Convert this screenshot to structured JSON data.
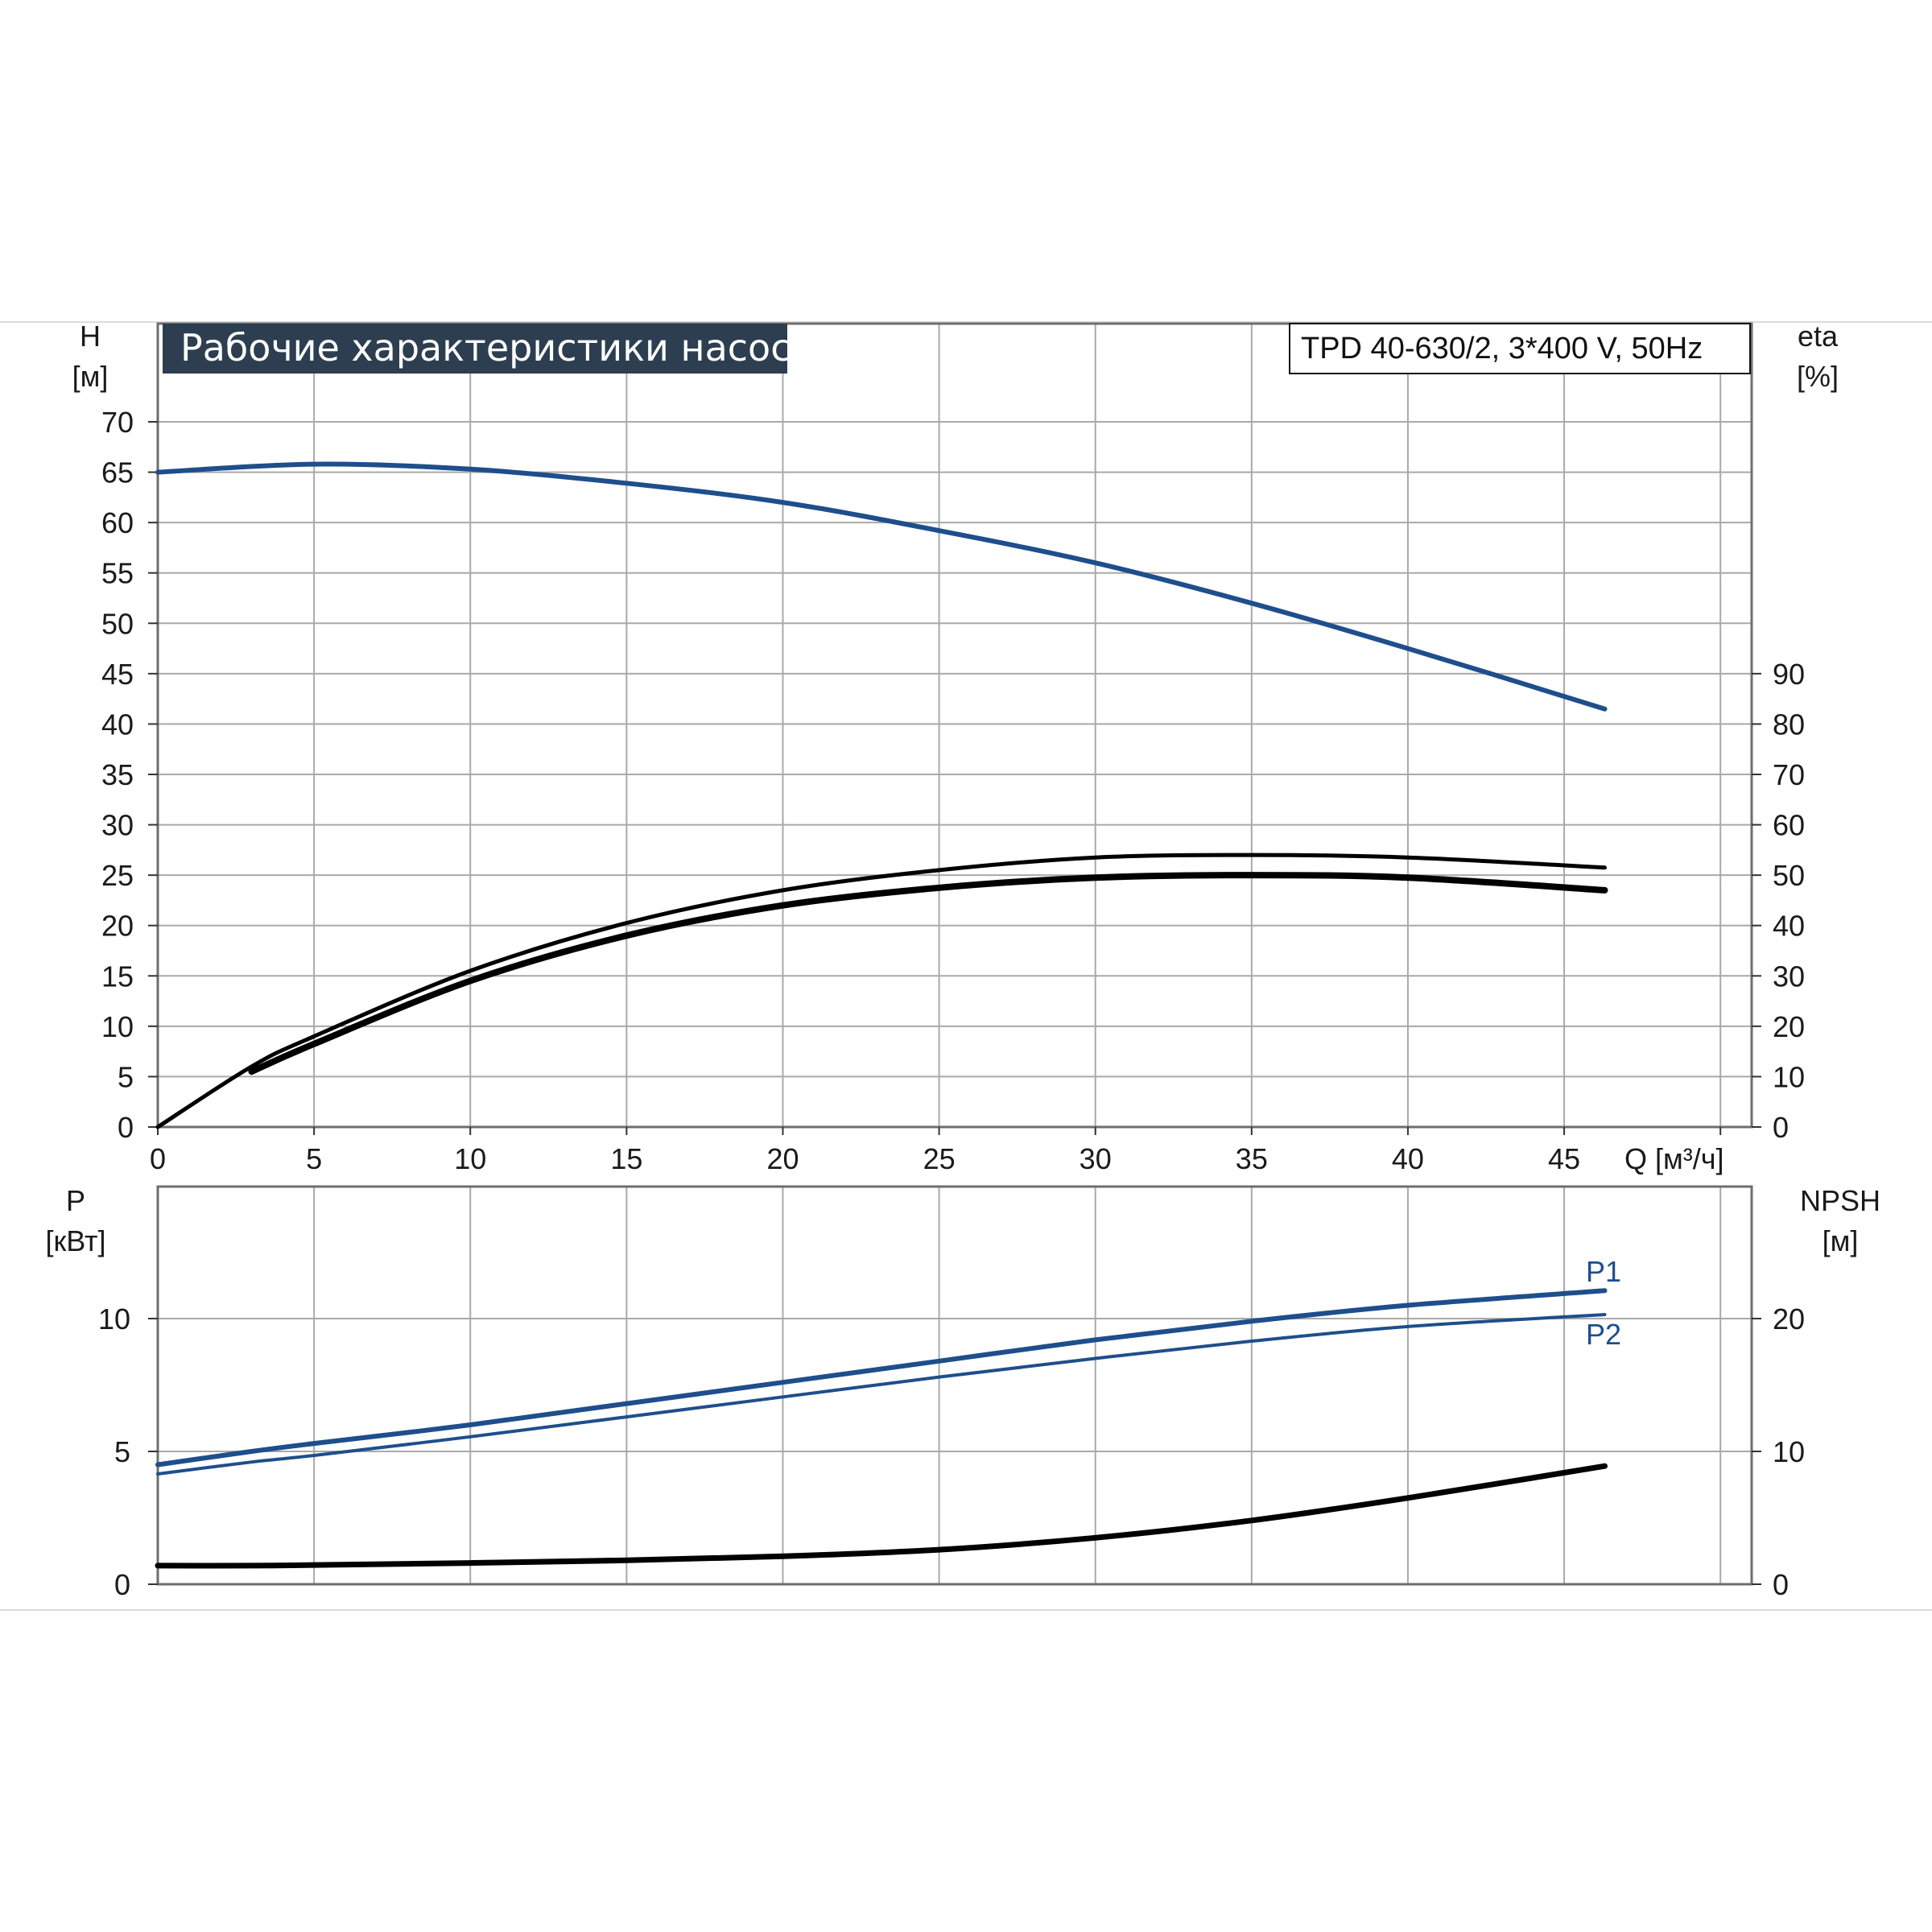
{
  "chart_data": [
    {
      "type": "line",
      "title": "Рабочие характеристики насоса",
      "model": "TPD 40-630/2, 3*400 V, 50Hz",
      "xlabel": "Q [м³/ч]",
      "ylabel_main": "H",
      "ylabel_main_unit": "[м]",
      "ylabel_right": "eta",
      "ylabel_right_unit": "[%]",
      "xlim": [
        0,
        51
      ],
      "ylim": [
        0,
        70
      ],
      "ylim_right": [
        0,
        90
      ],
      "x_ticks": [
        "0",
        "5",
        "10",
        "15",
        "20",
        "25",
        "30",
        "35",
        "40",
        "45"
      ],
      "y_ticks": [
        "0",
        "5",
        "10",
        "15",
        "20",
        "25",
        "30",
        "35",
        "40",
        "45",
        "50",
        "55",
        "60",
        "65",
        "70"
      ],
      "y_right_ticks": [
        "0",
        "10",
        "20",
        "30",
        "40",
        "50",
        "60",
        "70",
        "80",
        "90"
      ],
      "grid": true,
      "series": [
        {
          "axis": "left",
          "color": "#1f4e8c",
          "x": [
            0,
            5,
            10,
            15,
            20,
            25,
            30,
            35,
            40,
            46.3
          ],
          "y": [
            65,
            65.8,
            65.3,
            63.9,
            62,
            59.2,
            56,
            52,
            47.5,
            41.5
          ]
        },
        {
          "axis": "right",
          "color": "#000000",
          "x": [
            0,
            3,
            5,
            10,
            15,
            20,
            25,
            30,
            35,
            40,
            46.3
          ],
          "y": [
            0,
            12,
            18,
            31,
            40.5,
            47,
            51,
            53.5,
            54,
            53.5,
            51.5
          ]
        },
        {
          "axis": "right",
          "color": "#000000",
          "x": [
            3,
            5,
            10,
            15,
            20,
            25,
            30,
            35,
            40,
            46.3
          ],
          "y": [
            11,
            16.5,
            29,
            38,
            44,
            47.5,
            49.5,
            50,
            49.5,
            47
          ]
        }
      ]
    },
    {
      "type": "line",
      "ylabel_main": "P",
      "ylabel_main_unit": "[кВт]",
      "ylabel_right": "NPSH",
      "ylabel_right_unit": "[м]",
      "xlim": [
        0,
        51
      ],
      "ylim": [
        0,
        15
      ],
      "ylim_right": [
        0,
        30
      ],
      "y_ticks": [
        "0",
        "5",
        "10"
      ],
      "y_right_ticks": [
        "0",
        "10",
        "20"
      ],
      "grid": true,
      "series": [
        {
          "name": "P1",
          "axis": "left",
          "color": "#1f4e8c",
          "x": [
            0,
            3,
            5,
            10,
            15,
            20,
            25,
            30,
            35,
            40,
            46.3
          ],
          "y": [
            4.5,
            5.0,
            5.3,
            6.0,
            6.8,
            7.6,
            8.4,
            9.2,
            9.9,
            10.5,
            11.05
          ]
        },
        {
          "name": "P2",
          "axis": "left",
          "color": "#1f4e8c",
          "x": [
            0,
            3,
            5,
            10,
            15,
            20,
            25,
            30,
            35,
            40,
            46.3
          ],
          "y": [
            4.15,
            4.6,
            4.85,
            5.55,
            6.3,
            7.05,
            7.8,
            8.5,
            9.15,
            9.7,
            10.15
          ]
        },
        {
          "axis": "right",
          "color": "#000000",
          "x": [
            0,
            3,
            5,
            10,
            15,
            20,
            25,
            30,
            35,
            40,
            46.3
          ],
          "y": [
            1.4,
            1.4,
            1.45,
            1.6,
            1.8,
            2.1,
            2.6,
            3.5,
            4.8,
            6.5,
            8.9
          ]
        }
      ]
    }
  ]
}
